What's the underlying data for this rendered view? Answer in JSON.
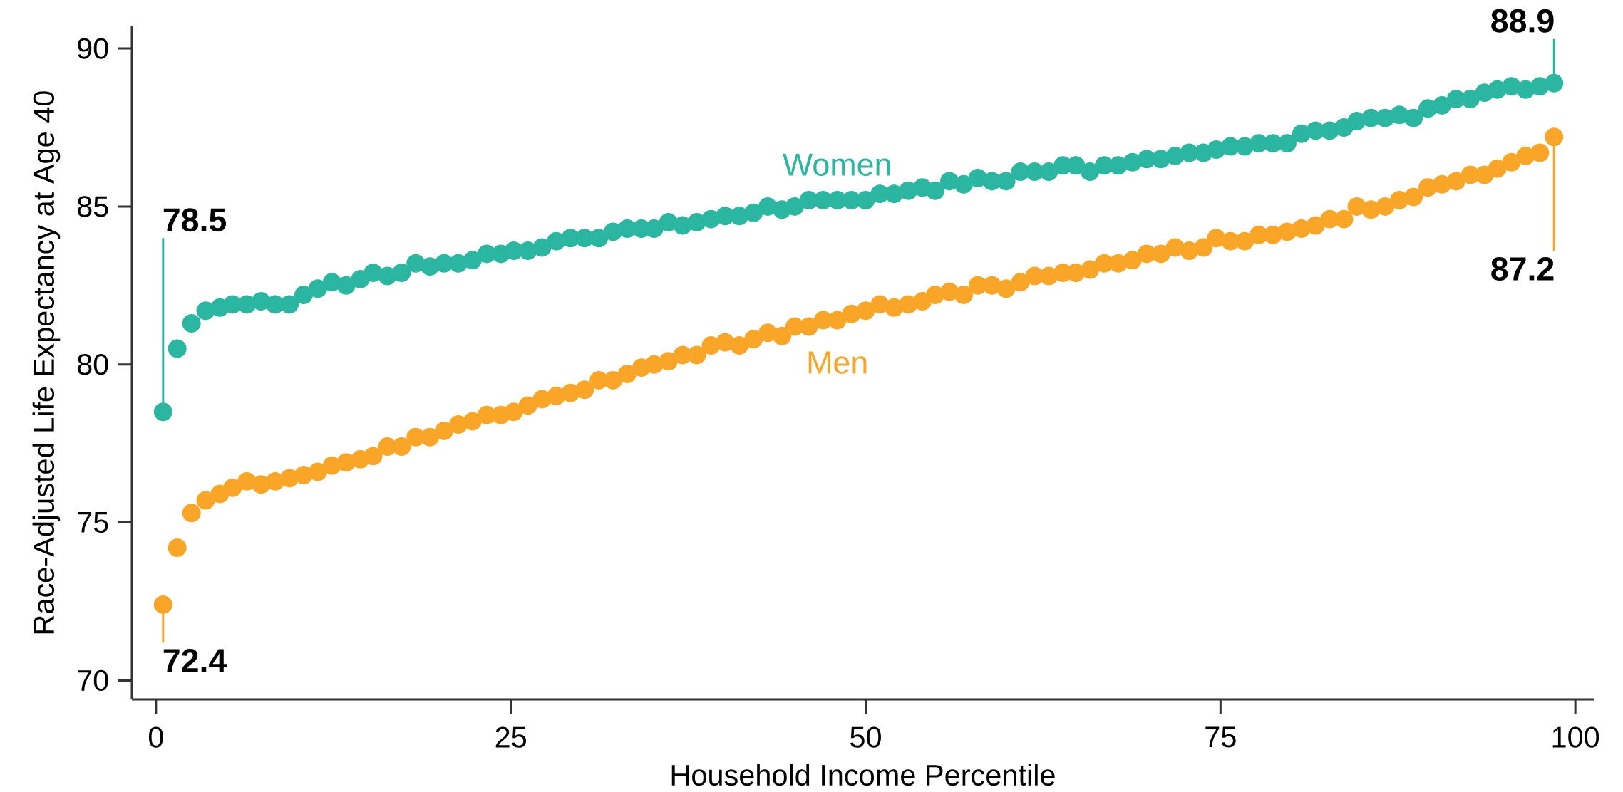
{
  "chart_data": {
    "type": "scatter",
    "xlabel": "Household Income Percentile",
    "ylabel": "Race-Adjusted Life Expectancy at Age 40",
    "marker": "circle",
    "xlim": [
      -1.7,
      101.3
    ],
    "ylim": [
      69.4,
      90.7
    ],
    "xticks": [
      0,
      25,
      50,
      75,
      100
    ],
    "yticks": [
      70,
      75,
      80,
      85,
      90
    ],
    "x": [
      0.5,
      1.5,
      2.5,
      3.5,
      4.5,
      5.4,
      6.4,
      7.4,
      8.4,
      9.4,
      10.4,
      11.4,
      12.4,
      13.4,
      14.4,
      15.3,
      16.3,
      17.3,
      18.3,
      19.3,
      20.3,
      21.3,
      22.3,
      23.3,
      24.3,
      25.2,
      26.2,
      27.2,
      28.2,
      29.2,
      30.2,
      31.2,
      32.2,
      33.2,
      34.2,
      35.1,
      36.1,
      37.1,
      38.1,
      39.1,
      40.1,
      41.1,
      42.1,
      43.1,
      44.1,
      45,
      46,
      47,
      48,
      49,
      50,
      51,
      52,
      53,
      54,
      54.9,
      55.9,
      56.9,
      57.9,
      58.9,
      59.9,
      60.9,
      61.9,
      62.9,
      63.9,
      64.8,
      65.8,
      66.8,
      67.8,
      68.8,
      69.8,
      70.8,
      71.8,
      72.8,
      73.8,
      74.7,
      75.7,
      76.7,
      77.7,
      78.7,
      79.7,
      80.7,
      81.7,
      82.7,
      83.7,
      84.6,
      85.6,
      86.6,
      87.6,
      88.6,
      89.6,
      90.6,
      91.6,
      92.6,
      93.6,
      94.5,
      95.5,
      96.5,
      97.5,
      98.5
    ],
    "series": [
      {
        "name": "Women",
        "color": "#2bb6a1",
        "values": [
          78.5,
          80.5,
          81.3,
          81.7,
          81.8,
          81.9,
          81.9,
          82.0,
          81.9,
          81.9,
          82.2,
          82.4,
          82.6,
          82.5,
          82.7,
          82.9,
          82.8,
          82.9,
          83.2,
          83.1,
          83.2,
          83.2,
          83.3,
          83.5,
          83.5,
          83.6,
          83.6,
          83.7,
          83.9,
          84.0,
          84.0,
          84.0,
          84.2,
          84.3,
          84.3,
          84.3,
          84.5,
          84.4,
          84.5,
          84.6,
          84.7,
          84.7,
          84.8,
          85.0,
          84.9,
          85.0,
          85.2,
          85.2,
          85.2,
          85.2,
          85.2,
          85.4,
          85.4,
          85.5,
          85.6,
          85.5,
          85.8,
          85.7,
          85.9,
          85.8,
          85.8,
          86.1,
          86.1,
          86.1,
          86.3,
          86.3,
          86.1,
          86.3,
          86.3,
          86.4,
          86.5,
          86.5,
          86.6,
          86.7,
          86.7,
          86.8,
          86.9,
          86.9,
          87.0,
          87.0,
          87.0,
          87.3,
          87.4,
          87.4,
          87.5,
          87.7,
          87.8,
          87.8,
          87.9,
          87.8,
          88.1,
          88.2,
          88.4,
          88.4,
          88.6,
          88.7,
          88.8,
          88.7,
          88.8,
          88.9
        ],
        "value_labels": [
          "78.5",
          null,
          null,
          null,
          null,
          null,
          null,
          null,
          null,
          null,
          null,
          null,
          null,
          null,
          null,
          null,
          null,
          null,
          null,
          null,
          null,
          null,
          null,
          null,
          null,
          null,
          null,
          null,
          null,
          null,
          null,
          null,
          null,
          null,
          null,
          null,
          null,
          null,
          null,
          null,
          null,
          null,
          null,
          null,
          null,
          null,
          null,
          null,
          null,
          null,
          null,
          null,
          null,
          null,
          null,
          null,
          null,
          null,
          null,
          null,
          null,
          null,
          null,
          null,
          null,
          null,
          null,
          null,
          null,
          null,
          null,
          null,
          null,
          null,
          null,
          null,
          null,
          null,
          null,
          null,
          null,
          null,
          null,
          null,
          null,
          null,
          null,
          null,
          null,
          null,
          null,
          null,
          null,
          null,
          null,
          null,
          null,
          null,
          null,
          "88.9"
        ]
      },
      {
        "name": "Men",
        "color": "#f9a628",
        "values": [
          72.4,
          74.2,
          75.3,
          75.7,
          75.9,
          76.1,
          76.3,
          76.2,
          76.3,
          76.4,
          76.5,
          76.6,
          76.8,
          76.9,
          77.0,
          77.1,
          77.4,
          77.4,
          77.7,
          77.7,
          77.9,
          78.1,
          78.2,
          78.4,
          78.4,
          78.5,
          78.7,
          78.9,
          79.0,
          79.1,
          79.2,
          79.5,
          79.5,
          79.7,
          79.9,
          80.0,
          80.1,
          80.3,
          80.3,
          80.6,
          80.7,
          80.6,
          80.8,
          81.0,
          80.9,
          81.2,
          81.2,
          81.4,
          81.4,
          81.6,
          81.7,
          81.9,
          81.8,
          81.9,
          82.0,
          82.2,
          82.3,
          82.2,
          82.5,
          82.5,
          82.4,
          82.6,
          82.8,
          82.8,
          82.9,
          82.9,
          83.0,
          83.2,
          83.2,
          83.3,
          83.5,
          83.5,
          83.7,
          83.6,
          83.7,
          84.0,
          83.9,
          83.9,
          84.1,
          84.1,
          84.2,
          84.3,
          84.4,
          84.6,
          84.6,
          85.0,
          84.9,
          85.0,
          85.2,
          85.3,
          85.6,
          85.7,
          85.8,
          86.0,
          86.0,
          86.2,
          86.4,
          86.6,
          86.7,
          87.2
        ],
        "value_labels": [
          "72.4",
          null,
          null,
          null,
          null,
          null,
          null,
          null,
          null,
          null,
          null,
          null,
          null,
          null,
          null,
          null,
          null,
          null,
          null,
          null,
          null,
          null,
          null,
          null,
          null,
          null,
          null,
          null,
          null,
          null,
          null,
          null,
          null,
          null,
          null,
          null,
          null,
          null,
          null,
          null,
          null,
          null,
          null,
          null,
          null,
          null,
          null,
          null,
          null,
          null,
          null,
          null,
          null,
          null,
          null,
          null,
          null,
          null,
          null,
          null,
          null,
          null,
          null,
          null,
          null,
          null,
          null,
          null,
          null,
          null,
          null,
          null,
          null,
          null,
          null,
          null,
          null,
          null,
          null,
          null,
          null,
          null,
          null,
          null,
          null,
          null,
          null,
          null,
          null,
          null,
          null,
          null,
          null,
          null,
          null,
          null,
          null,
          null,
          null,
          "87.2"
        ]
      }
    ]
  }
}
